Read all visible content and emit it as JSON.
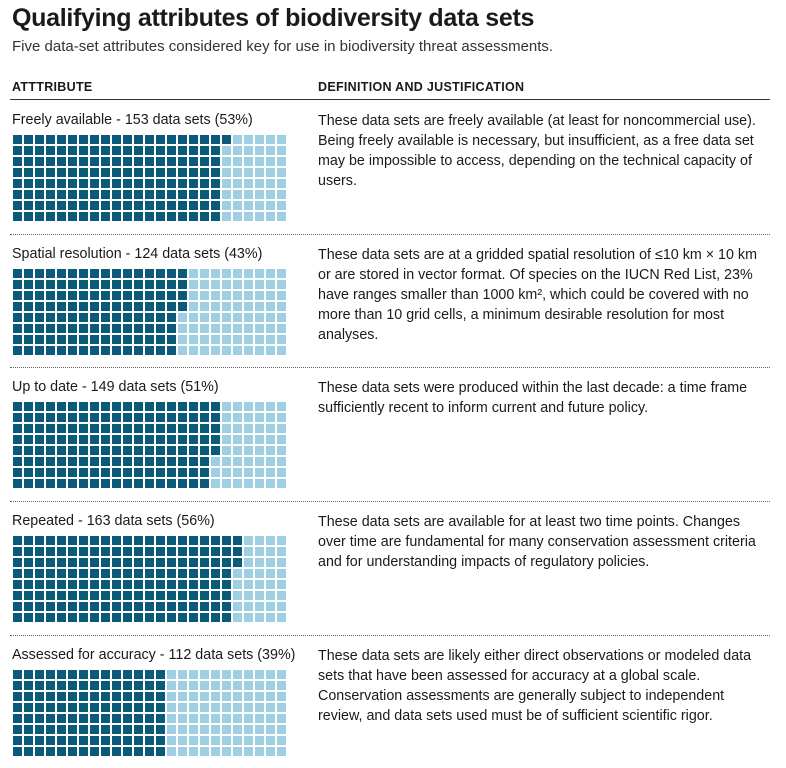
{
  "title": "Qualifying attributes of biodiversity data sets",
  "subtitle": "Five data-set attributes considered key for use in biodiversity threat assessments.",
  "headers": {
    "attribute": "ATTTRIBUTE",
    "definition": "DEFINITION AND JUSTIFICATION"
  },
  "colors": {
    "filled": "#0b5a7a",
    "empty": "#9fcfe3"
  },
  "rows": [
    {
      "label": "Freely available - 153 data sets (53%)",
      "definition": "These data sets are freely available (at least for noncommercial use). Being freely available is necessary, but insufficient, as a free data set may be impossible to access, depending on the technical capacity of users."
    },
    {
      "label": "Spatial resolution - 124 data sets (43%)",
      "definition": "These data sets are at a gridded spatial resolution of ≤10 km × 10 km or are stored in vector format. Of species on the IUCN Red List, 23% have ranges smaller than 1000 km², which could be covered with no more than 10 grid cells, a minimum desirable resolution for most analyses."
    },
    {
      "label": "Up to date - 149 data sets (51%)",
      "definition": "These data sets were produced within the last decade: a time frame sufficiently recent to inform current and future policy."
    },
    {
      "label": "Repeated - 163 data sets (56%)",
      "definition": "These data sets are available for at least two time points. Changes over time are fundamental for many conservation assessment criteria and for understanding impacts of regulatory policies."
    },
    {
      "label": "Assessed for accuracy - 112 data sets (39%)",
      "definition": "These data sets are likely either direct observations or modeled data sets that have been assessed for accuracy at a global scale.  Conservation assessments are generally subject to independent review, and data sets used must be of sufficient scientific rigor."
    }
  ],
  "chart_data": {
    "type": "waffle",
    "total_cells": 200,
    "grid": {
      "columns": 25,
      "rows": 8
    },
    "categories": [
      "Freely available",
      "Spatial resolution",
      "Up to date",
      "Repeated",
      "Assessed for accuracy"
    ],
    "values": [
      153,
      124,
      149,
      163,
      112
    ],
    "percent": [
      53,
      43,
      51,
      56,
      39
    ],
    "unit": "data sets"
  }
}
